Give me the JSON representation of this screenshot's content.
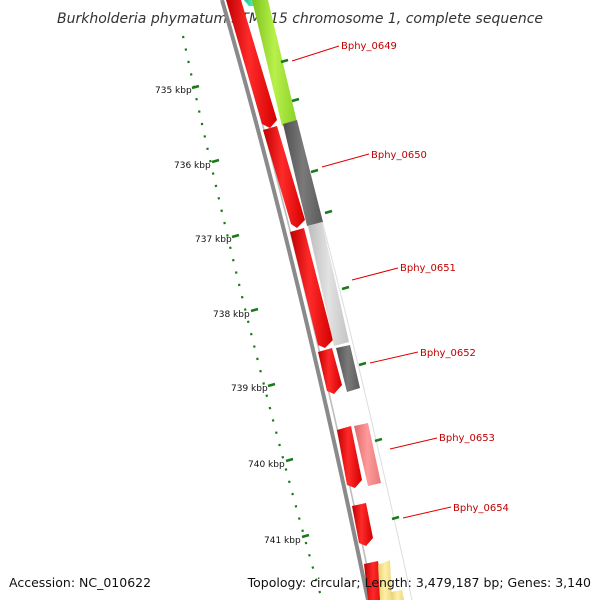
{
  "title": "Burkholderia phymatum STM815 chromosome 1, complete sequence",
  "footer": {
    "accession": "Accession: NC_010622",
    "summary": "Topology: circular; Length: 3,479,187 bp; Genes: 3,140"
  },
  "ticks": [
    "735 kbp",
    "736 kbp",
    "737 kbp",
    "738 kbp",
    "739 kbp",
    "740 kbp",
    "741 kbp"
  ],
  "genes": [
    "Bphy_0649",
    "Bphy_0650",
    "Bphy_0651",
    "Bphy_0652",
    "Bphy_0653",
    "Bphy_0654"
  ],
  "colors": {
    "backbone": "#8a8a8a",
    "forward_feature": "#ff0000",
    "tick_mark": "#1a7a1a",
    "label_line": "#e00000",
    "gene_label": "#c00000",
    "teal": "#33ddaa",
    "lime": "#a6e23a",
    "dark_gray": "#666666",
    "light_gray": "#cccccc",
    "pink": "#f08080",
    "pale_yellow": "#f1df8a"
  }
}
